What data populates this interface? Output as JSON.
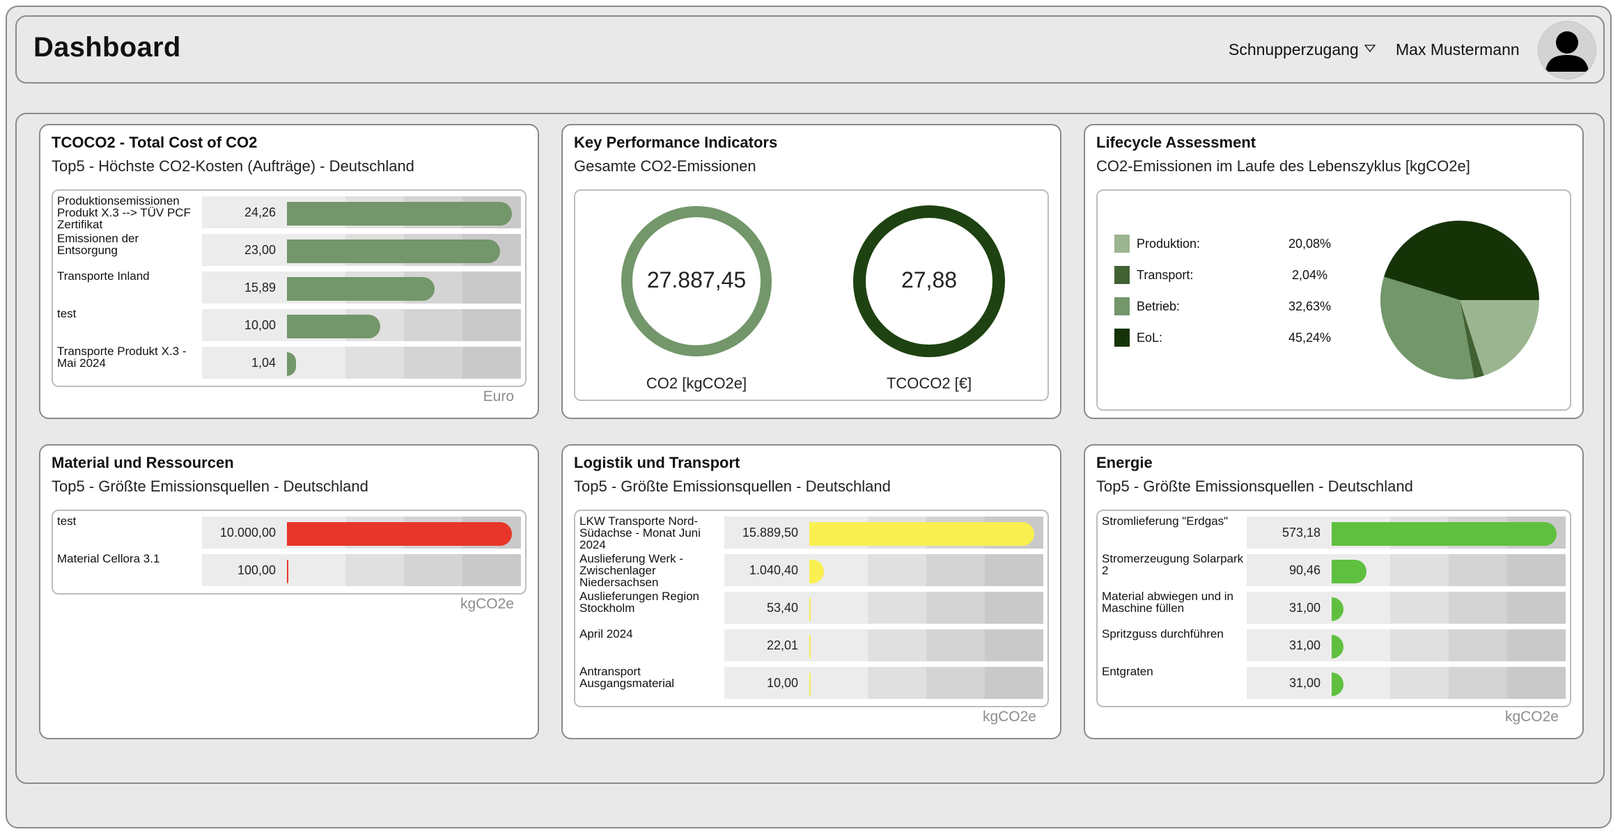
{
  "header": {
    "title": "Dashboard",
    "account": "Schnupperzugang",
    "user": "Max Mustermann"
  },
  "colors": {
    "green_bar": "#73966a",
    "red_bar": "#e8352a",
    "yellow_bar": "#f9ef4f",
    "bright_green_bar": "#5fc040",
    "co2_ring": "#73966a",
    "tcoco2_ring": "#1e4211",
    "lca_produktion": "#9cb591",
    "lca_transport": "#426133",
    "lca_betrieb": "#73966a",
    "lca_eol": "#163308"
  },
  "cards": {
    "tcoco2": {
      "title": "TCOCO2 - Total Cost of CO2",
      "subtitle": "Top5 - Höchste CO2-Kosten (Aufträge) - Deutschland",
      "unit": "Euro",
      "rows": [
        {
          "label": "Produktionsemissionen Produkt X.3 --> TÜV PCF Zertifikat",
          "value": "24,26",
          "level": 0.96
        },
        {
          "label": "Emissionen der Entsorgung",
          "value": "23,00",
          "level": 0.91
        },
        {
          "label": "Transporte Inland",
          "value": "15,89",
          "level": 0.63
        },
        {
          "label": "test",
          "value": "10,00",
          "level": 0.4
        },
        {
          "label": "Transporte Produkt X.3 - Mai 2024",
          "value": "1,04",
          "level": 0.04
        }
      ]
    },
    "kpi": {
      "title": "Key Performance Indicators",
      "subtitle": "Gesamte CO2-Emissionen",
      "co2_value": "27.887,45",
      "co2_label": "CO2 [kgCO2e]",
      "tcoco2_value": "27,88",
      "tcoco2_label": "TCOCO2 [€]"
    },
    "lca": {
      "title": "Lifecycle Assessment",
      "subtitle": "CO2-Emissionen im Laufe des Lebenszyklus [kgCO2e]",
      "legend": [
        {
          "label": "Produktion:",
          "pct": "20,08%",
          "value": 20.08
        },
        {
          "label": "Transport:",
          "pct": "2,04%",
          "value": 2.04
        },
        {
          "label": "Betrieb:",
          "pct": "32,63%",
          "value": 32.63
        },
        {
          "label": "EoL:",
          "pct": "45,24%",
          "value": 45.24
        }
      ]
    },
    "material": {
      "title": "Material und Ressourcen",
      "subtitle": "Top5 - Größte Emissionsquellen - Deutschland",
      "unit": "kgCO2e",
      "rows": [
        {
          "label": "test",
          "value": "10.000,00",
          "level": 0.96
        },
        {
          "label": "Material Cellora 3.1",
          "value": "100,00",
          "level": 0.006
        }
      ]
    },
    "logistik": {
      "title": "Logistik und Transport",
      "subtitle": "Top5 - Größte Emissionsquellen - Deutschland",
      "unit": "kgCO2e",
      "rows": [
        {
          "label": "LKW Transporte Nord-Südachse - Monat Juni 2024",
          "value": "15.889,50",
          "level": 0.96
        },
        {
          "label": "Auslieferung Werk - Zwischenlager Niedersachsen",
          "value": "1.040,40",
          "level": 0.063
        },
        {
          "label": "Auslieferungen Region Stockholm",
          "value": "53,40",
          "level": 0.004
        },
        {
          "label": "April 2024",
          "value": "22,01",
          "level": 0.002
        },
        {
          "label": "Antransport Ausgangsmaterial",
          "value": "10,00",
          "level": 0.001
        }
      ]
    },
    "energie": {
      "title": "Energie",
      "subtitle": "Top5 - Größte Emissionsquellen - Deutschland",
      "unit": "kgCO2e",
      "rows": [
        {
          "label": "Stromlieferung \"Erdgas\"",
          "value": "573,18",
          "level": 0.96
        },
        {
          "label": "Stromerzeugung Solarpark 2",
          "value": "90,46",
          "level": 0.15
        },
        {
          "label": "Material abwiegen und in Maschine füllen",
          "value": "31,00",
          "level": 0.052
        },
        {
          "label": "Spritzguss durchführen",
          "value": "31,00",
          "level": 0.052
        },
        {
          "label": "Entgraten",
          "value": "31,00",
          "level": 0.052
        }
      ]
    }
  }
}
